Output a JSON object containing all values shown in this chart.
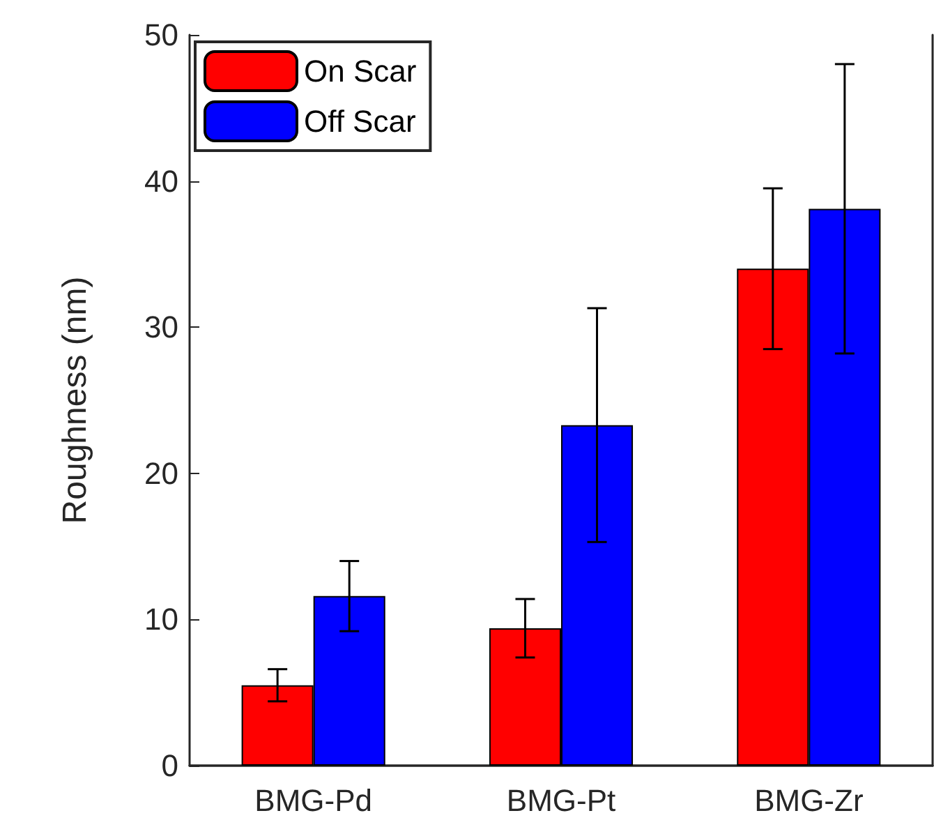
{
  "chart_data": {
    "type": "bar",
    "ylabel": "Roughness (nm)",
    "categories": [
      "BMG-Pd",
      "BMG-Pt",
      "BMG-Zr"
    ],
    "series": [
      {
        "name": "On Scar",
        "color": "#ff0000",
        "values": [
          5.5,
          9.4,
          34.0
        ],
        "errors": [
          1.1,
          2.0,
          5.5
        ]
      },
      {
        "name": "Off Scar",
        "color": "#0000ff",
        "values": [
          11.6,
          23.3,
          38.1
        ],
        "errors": [
          2.4,
          8.0,
          9.9
        ]
      }
    ],
    "ylim": [
      0,
      50
    ],
    "yticks": [
      0,
      10,
      20,
      30,
      40,
      50
    ],
    "grid": false,
    "legend": "top left"
  }
}
